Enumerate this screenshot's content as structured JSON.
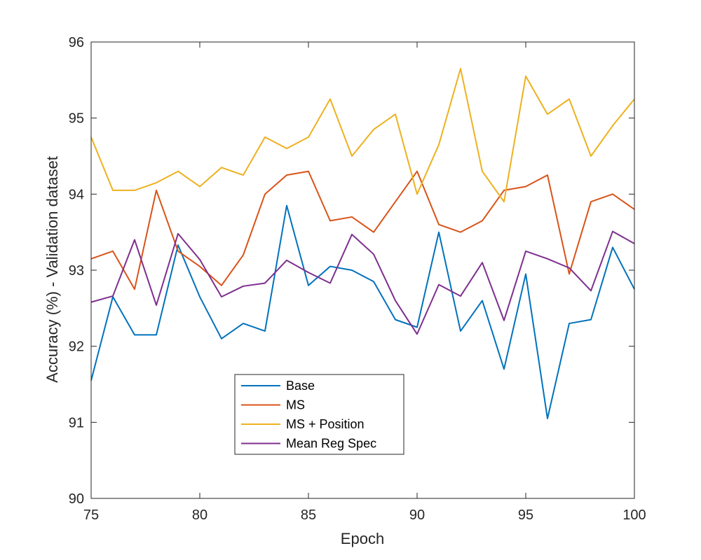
{
  "chart_data": {
    "type": "line",
    "xlabel": "Epoch",
    "ylabel": "Accuracy (%) - Validation dataset",
    "xlim": [
      75,
      100
    ],
    "ylim": [
      90,
      96
    ],
    "x_ticks": [
      75,
      80,
      85,
      90,
      95,
      100
    ],
    "y_ticks": [
      90,
      91,
      92,
      93,
      94,
      95,
      96
    ],
    "grid": false,
    "legend_position": "lower-left",
    "x": [
      75,
      76,
      77,
      78,
      79,
      80,
      81,
      82,
      83,
      84,
      85,
      86,
      87,
      88,
      89,
      90,
      91,
      92,
      93,
      94,
      95,
      96,
      97,
      98,
      99,
      100
    ],
    "series": [
      {
        "name": "Base",
        "color": "#0072BD",
        "values": [
          91.55,
          92.65,
          92.15,
          92.15,
          93.33,
          92.65,
          92.1,
          92.3,
          92.2,
          93.85,
          92.8,
          93.05,
          93.0,
          92.85,
          92.35,
          92.25,
          93.5,
          92.2,
          92.6,
          91.7,
          92.95,
          91.05,
          92.3,
          92.35,
          93.3,
          92.75
        ]
      },
      {
        "name": "MS",
        "color": "#D95319",
        "values": [
          93.15,
          93.25,
          92.75,
          94.05,
          93.25,
          93.05,
          92.8,
          93.2,
          94.0,
          94.25,
          94.3,
          93.65,
          93.7,
          93.5,
          93.9,
          94.3,
          93.6,
          93.5,
          93.65,
          94.05,
          94.1,
          94.25,
          92.95,
          93.9,
          94.0,
          93.8
        ]
      },
      {
        "name": "MS + Position",
        "color": "#EDB120",
        "values": [
          94.75,
          94.05,
          94.05,
          94.15,
          94.3,
          94.1,
          94.35,
          94.25,
          94.75,
          94.6,
          94.75,
          95.25,
          94.5,
          94.85,
          95.05,
          94.0,
          94.65,
          95.65,
          94.3,
          93.9,
          95.55,
          95.05,
          95.25,
          94.5,
          94.9,
          95.25
        ]
      },
      {
        "name": "Mean Reg Spec",
        "color": "#7E2F8E",
        "values": [
          92.58,
          92.66,
          93.4,
          92.54,
          93.48,
          93.14,
          92.65,
          92.79,
          92.83,
          93.13,
          92.97,
          92.83,
          93.47,
          93.21,
          92.6,
          92.16,
          92.81,
          92.66,
          93.1,
          92.34,
          93.25,
          93.15,
          93.03,
          92.73,
          93.51,
          93.35
        ]
      }
    ]
  }
}
